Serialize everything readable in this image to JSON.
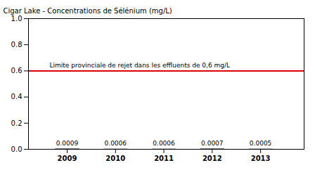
{
  "chart_data": {
    "type": "scatter",
    "ylabel": "Cigar Lake - Concentrations de Sélénium (mg/L)",
    "x": [
      2009,
      2010,
      2011,
      2012,
      2013
    ],
    "values": [
      0.0009,
      0.0006,
      0.0006,
      0.0007,
      0.0005
    ],
    "data_labels": true,
    "marker": "hline",
    "color": "#000000",
    "reference_lines": [
      {
        "value": 0.6,
        "label": "Limite provinciale de rejet dans les effluents de 0,6 mg/L",
        "color": "#dd0000"
      }
    ],
    "xlim": [
      2008.2,
      2013.9
    ],
    "xticks": [
      2009,
      2010,
      2011,
      2012,
      2013
    ],
    "ylim": [
      0.0,
      1.0
    ],
    "yticks": [
      {
        "value": 0.0,
        "label": "0.0"
      },
      0.2,
      0.4,
      0.6,
      0.8,
      {
        "value": 1.0,
        "label": "1.0"
      }
    ],
    "grid": false
  }
}
